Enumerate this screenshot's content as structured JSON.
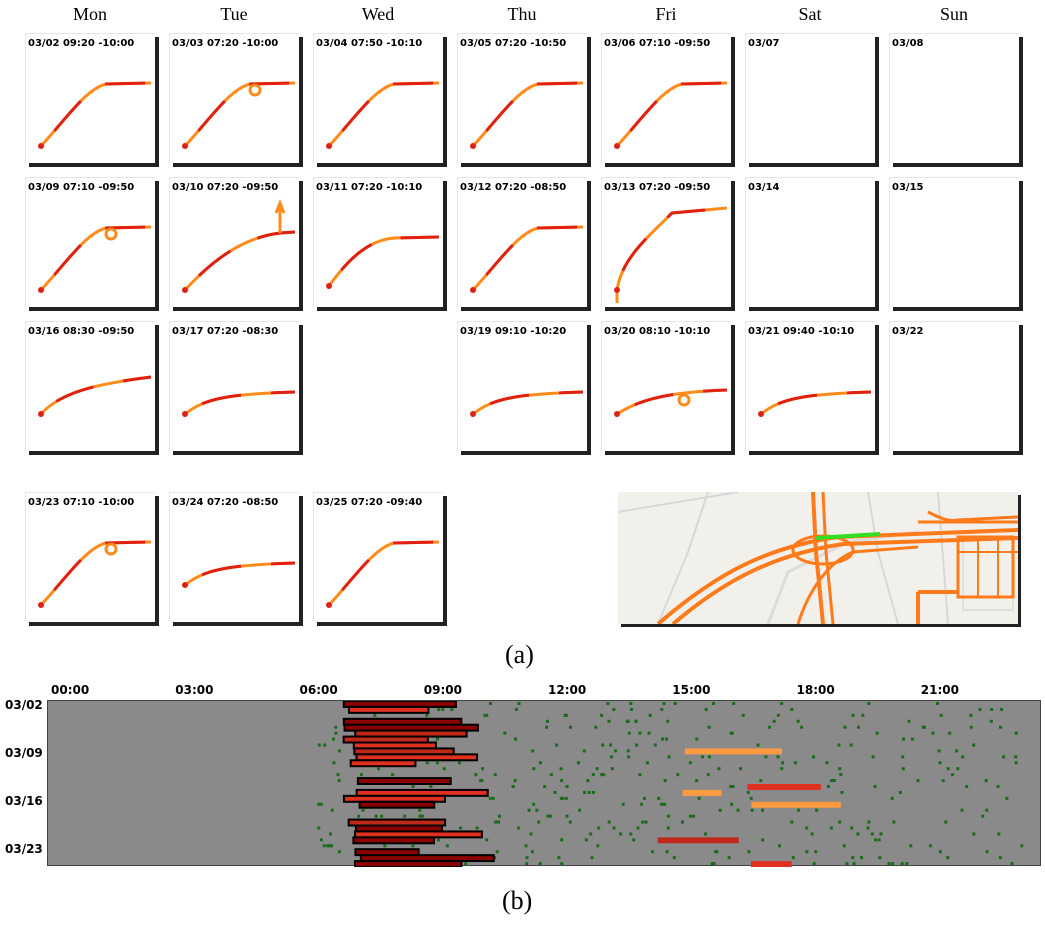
{
  "days": [
    "Mon",
    "Tue",
    "Wed",
    "Thu",
    "Fri",
    "Sat",
    "Sun"
  ],
  "cells": [
    {
      "row": 0,
      "col": 0,
      "label": "03/02 09:20 -10:00",
      "curve": "s"
    },
    {
      "row": 0,
      "col": 1,
      "label": "03/03 07:20 -10:00",
      "curve": "s_loop"
    },
    {
      "row": 0,
      "col": 2,
      "label": "03/04 07:50 -10:10",
      "curve": "s"
    },
    {
      "row": 0,
      "col": 3,
      "label": "03/05 07:20 -10:50",
      "curve": "s_hook"
    },
    {
      "row": 0,
      "col": 4,
      "label": "03/06 07:10 -09:50",
      "curve": "s"
    },
    {
      "row": 0,
      "col": 5,
      "label": "03/07",
      "curve": "none"
    },
    {
      "row": 0,
      "col": 6,
      "label": "03/08",
      "curve": "none"
    },
    {
      "row": 1,
      "col": 0,
      "label": "03/09 07:10 -09:50",
      "curve": "s_loop"
    },
    {
      "row": 1,
      "col": 1,
      "label": "03/10 07:20 -09:50",
      "curve": "s_up"
    },
    {
      "row": 1,
      "col": 2,
      "label": "03/11 07:20 -10:10",
      "curve": "s_flat"
    },
    {
      "row": 1,
      "col": 3,
      "label": "03/12 07:20 -08:50",
      "curve": "s"
    },
    {
      "row": 1,
      "col": 4,
      "label": "03/13 07:20 -09:50",
      "curve": "s_down"
    },
    {
      "row": 1,
      "col": 5,
      "label": "03/14",
      "curve": "none"
    },
    {
      "row": 1,
      "col": 6,
      "label": "03/15",
      "curve": "none"
    },
    {
      "row": 2,
      "col": 0,
      "label": "03/16 08:30 -09:50",
      "curve": "flat_double"
    },
    {
      "row": 2,
      "col": 1,
      "label": "03/17 07:20 -08:30",
      "curve": "flat"
    },
    {
      "row": 2,
      "col": 3,
      "label": "03/19 09:10 -10:20",
      "curve": "flat"
    },
    {
      "row": 2,
      "col": 4,
      "label": "03/20 08:10 -10:10",
      "curve": "flat_loop"
    },
    {
      "row": 2,
      "col": 5,
      "label": "03/21 09:40 -10:10",
      "curve": "flat"
    },
    {
      "row": 2,
      "col": 6,
      "label": "03/22",
      "curve": "none"
    },
    {
      "row": 3,
      "col": 0,
      "label": "03/23 07:10 -10:00",
      "curve": "s_loop"
    },
    {
      "row": 3,
      "col": 1,
      "label": "03/24 07:20 -08:50",
      "curve": "flat"
    },
    {
      "row": 3,
      "col": 2,
      "label": "03/25 07:20 -09:40",
      "curve": "s"
    }
  ],
  "captions": {
    "a": "(a)",
    "b": "(b)"
  },
  "chart_data": {
    "type": "heatmap",
    "x_ticks": [
      "00:00",
      "03:00",
      "06:00",
      "09:00",
      "12:00",
      "15:00",
      "18:00",
      "21:00"
    ],
    "y_ticks": [
      "03/02",
      "03/09",
      "03/16",
      "03/23"
    ],
    "x_range": [
      0,
      24
    ],
    "rows": 28,
    "background_color": "#8a8a8a",
    "colors": {
      "high": "#8b0000",
      "mid": "#e03020",
      "low": "#ff9a40",
      "sparse": "#1a6b1a",
      "highlight_border": "#000000"
    }
  },
  "colors": {
    "trajectory_orange": "#ff8c1a",
    "trajectory_red": "#e02010",
    "route_green": "#33dd22"
  }
}
